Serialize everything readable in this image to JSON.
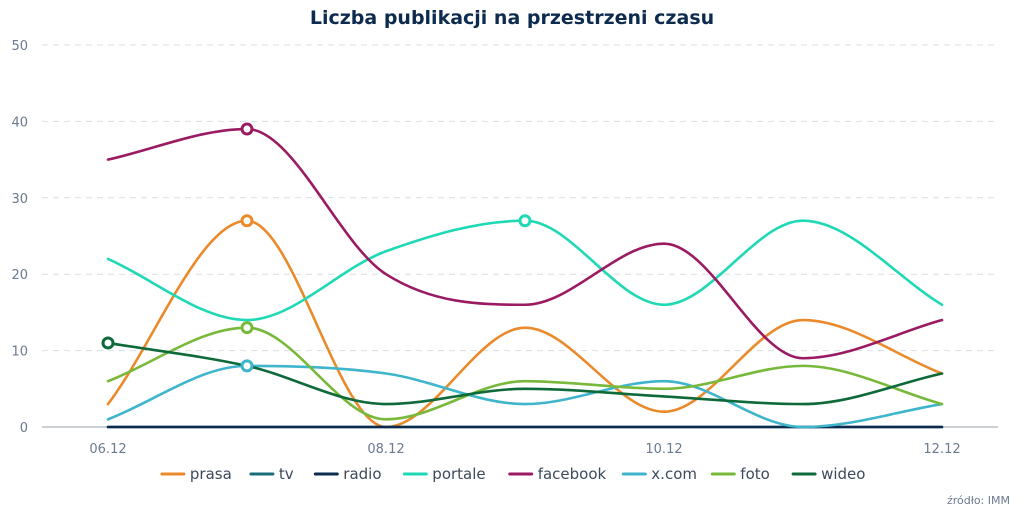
{
  "chart_data": {
    "type": "line",
    "title": "Liczba publikacji na przestrzeni czasu",
    "xlabel": "",
    "ylabel": "",
    "x": [
      "06.12",
      "07.12",
      "08.12",
      "09.12",
      "10.12",
      "11.12",
      "12.12"
    ],
    "x_tick_labels": [
      "06.12",
      "08.12",
      "10.12",
      "12.12"
    ],
    "ylim": [
      0,
      50
    ],
    "y_ticks": [
      "0",
      "10",
      "20",
      "30",
      "40",
      "50"
    ],
    "grid": true,
    "legend_position": "bottom",
    "series": [
      {
        "name": "prasa",
        "color": "#ea8a2b",
        "values": [
          3,
          27,
          0,
          13,
          2,
          14,
          7
        ],
        "highlight": 1
      },
      {
        "name": "tv",
        "color": "#1b6b7a",
        "values": [
          0,
          0,
          0,
          0,
          0,
          0,
          0
        ],
        "highlight": null
      },
      {
        "name": "radio",
        "color": "#0d2a4f",
        "values": [
          0,
          0,
          0,
          0,
          0,
          0,
          0
        ],
        "highlight": null
      },
      {
        "name": "portale",
        "color": "#1fd9b4",
        "values": [
          22,
          14,
          23,
          27,
          16,
          27,
          16
        ],
        "highlight": 3
      },
      {
        "name": "facebook",
        "color": "#9b1b63",
        "values": [
          35,
          39,
          20,
          16,
          24,
          9,
          14
        ],
        "highlight": 1
      },
      {
        "name": "x.com",
        "color": "#3fb5cc",
        "values": [
          1,
          8,
          7,
          3,
          6,
          0,
          3
        ],
        "highlight": 1
      },
      {
        "name": "foto",
        "color": "#78b83b",
        "values": [
          6,
          13,
          1,
          6,
          5,
          8,
          3
        ],
        "highlight": 1
      },
      {
        "name": "wideo",
        "color": "#0e6a3a",
        "values": [
          11,
          8,
          3,
          5,
          4,
          3,
          7
        ],
        "highlight": 0
      }
    ],
    "source": "źródło: IMM"
  }
}
